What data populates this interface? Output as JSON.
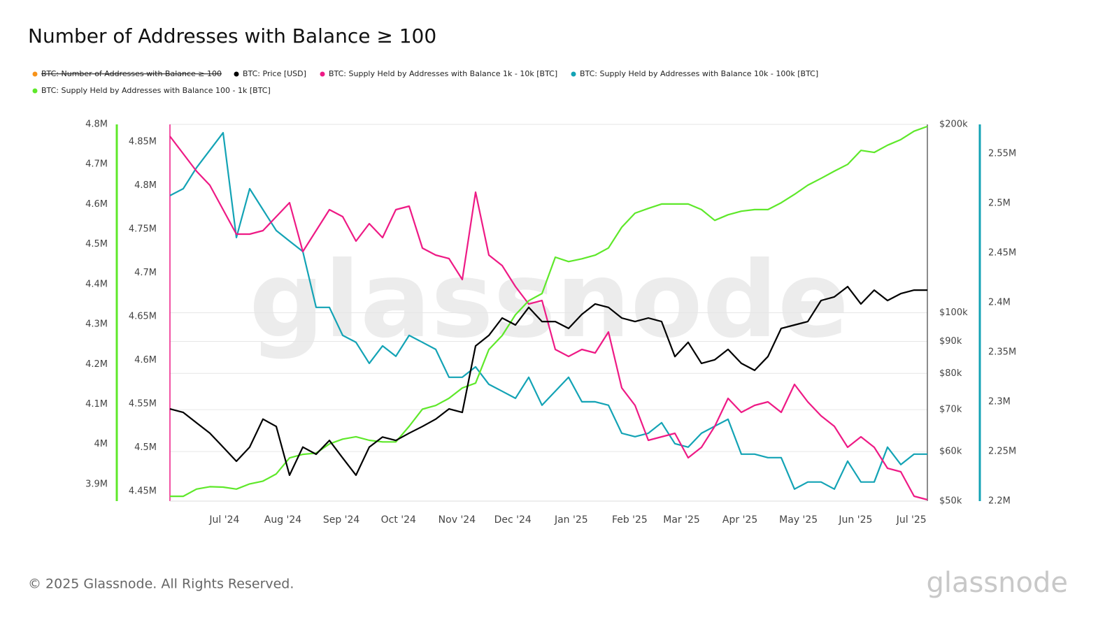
{
  "chart_data": {
    "type": "line",
    "title": "Number of Addresses with Balance ≥ 100",
    "watermark": "glassnode",
    "xlim": [
      0,
      57
    ],
    "xticks": [
      {
        "value": 4.1,
        "label": "Jul '24"
      },
      {
        "value": 8.5,
        "label": "Aug '24"
      },
      {
        "value": 12.9,
        "label": "Sep '24"
      },
      {
        "value": 17.2,
        "label": "Oct '24"
      },
      {
        "value": 21.6,
        "label": "Nov '24"
      },
      {
        "value": 25.8,
        "label": "Dec '24"
      },
      {
        "value": 30.2,
        "label": "Jan '25"
      },
      {
        "value": 34.6,
        "label": "Feb '25"
      },
      {
        "value": 38.5,
        "label": "Mar '25"
      },
      {
        "value": 42.9,
        "label": "Apr '25"
      },
      {
        "value": 47.3,
        "label": "May '25"
      },
      {
        "value": 51.6,
        "label": "Jun '25"
      },
      {
        "value": 55.8,
        "label": "Jul '25"
      }
    ],
    "grid": true,
    "series": [
      {
        "name": "BTC: Number of Addresses with Balance ≥ 100",
        "color": "#f7931a",
        "hidden": true
      },
      {
        "name": "BTC: Price [USD]",
        "color": "#000000",
        "axis": "price",
        "log": true,
        "ylim": [
          50000,
          200000
        ],
        "yticks": [
          {
            "value": 50000,
            "label": "$50k"
          },
          {
            "value": 60000,
            "label": "$60k"
          },
          {
            "value": 70000,
            "label": "$70k"
          },
          {
            "value": 80000,
            "label": "$80k"
          },
          {
            "value": 90000,
            "label": "$90k"
          },
          {
            "value": 100000,
            "label": "$100k"
          },
          {
            "value": 200000,
            "label": "$200k"
          }
        ],
        "values": [
          70200,
          69300,
          66700,
          64200,
          61000,
          57900,
          61000,
          67600,
          65800,
          55000,
          61000,
          59400,
          62500,
          58600,
          55000,
          61000,
          63300,
          62500,
          64200,
          65800,
          67600,
          70200,
          69300,
          88500,
          92000,
          98100,
          95600,
          102000,
          96800,
          96800,
          94400,
          99400,
          103300,
          102000,
          98100,
          96800,
          98100,
          96800,
          85100,
          89700,
          83000,
          84100,
          87400,
          83000,
          80900,
          85100,
          94400,
          95600,
          96800,
          104600,
          106000,
          110100,
          103300,
          108700,
          104600,
          107300,
          108700,
          108700
        ]
      },
      {
        "name": "BTC: Supply Held by Addresses with Balance 1k - 10k [BTC]",
        "color": "#ee1a85",
        "axis": "pink",
        "ylim": [
          4438800,
          4870000
        ],
        "yticks": [
          {
            "value": 4450000,
            "label": "4.45M"
          },
          {
            "value": 4500000,
            "label": "4.5M"
          },
          {
            "value": 4550000,
            "label": "4.55M"
          },
          {
            "value": 4600000,
            "label": "4.6M"
          },
          {
            "value": 4650000,
            "label": "4.65M"
          },
          {
            "value": 4700000,
            "label": "4.7M"
          },
          {
            "value": 4750000,
            "label": "4.75M"
          },
          {
            "value": 4800000,
            "label": "4.8M"
          },
          {
            "value": 4850000,
            "label": "4.85M"
          }
        ],
        "values": [
          4856400,
          4836400,
          4816400,
          4800400,
          4772400,
          4744400,
          4744400,
          4748400,
          4764400,
          4780400,
          4724400,
          4748400,
          4772400,
          4764400,
          4736400,
          4756400,
          4740400,
          4772400,
          4776400,
          4728400,
          4720400,
          4716400,
          4692400,
          4792400,
          4720400,
          4708400,
          4684400,
          4664400,
          4668400,
          4612400,
          4604400,
          4612400,
          4608400,
          4632400,
          4568400,
          4548400,
          4508400,
          4512400,
          4516400,
          4488400,
          4500400,
          4524400,
          4556400,
          4540400,
          4548400,
          4552400,
          4540400,
          4572400,
          4552400,
          4536400,
          4524400,
          4500400,
          4512400,
          4500400,
          4476400,
          4472400,
          4444400,
          4440400
        ]
      },
      {
        "name": "BTC: Supply Held by Addresses with Balance 10k - 100k [BTC]",
        "color": "#13a3b5",
        "axis": "teal",
        "ylim": [
          2200000,
          2579600
        ],
        "yticks": [
          {
            "value": 2200000,
            "label": "2.2M"
          },
          {
            "value": 2250000,
            "label": "2.25M"
          },
          {
            "value": 2300000,
            "label": "2.3M"
          },
          {
            "value": 2350000,
            "label": "2.35M"
          },
          {
            "value": 2400000,
            "label": "2.4M"
          },
          {
            "value": 2450000,
            "label": "2.45M"
          },
          {
            "value": 2500000,
            "label": "2.5M"
          },
          {
            "value": 2550000,
            "label": "2.55M"
          }
        ],
        "values": [
          2507800,
          2514800,
          2536000,
          2553600,
          2571200,
          2465600,
          2514800,
          2493700,
          2472600,
          2462000,
          2451500,
          2395200,
          2395200,
          2367000,
          2360000,
          2338800,
          2356400,
          2345900,
          2367000,
          2360000,
          2352900,
          2324800,
          2324800,
          2335300,
          2317700,
          2310700,
          2303600,
          2324800,
          2296600,
          2310700,
          2324800,
          2300100,
          2300100,
          2296600,
          2268400,
          2264900,
          2268400,
          2279000,
          2257900,
          2254400,
          2268400,
          2275500,
          2282500,
          2247300,
          2247300,
          2243800,
          2243800,
          2212100,
          2219200,
          2219200,
          2212100,
          2240300,
          2219200,
          2219200,
          2254400,
          2236800,
          2247300,
          2247300
        ]
      },
      {
        "name": "BTC: Supply Held by Addresses with Balance 100 - 1k [BTC]",
        "color": "#5ee82a",
        "axis": "green",
        "ylim": [
          3858000,
          4800000
        ],
        "yticks": [
          {
            "value": 3900000,
            "label": "3.9M"
          },
          {
            "value": 4000000,
            "label": "4M"
          },
          {
            "value": 4100000,
            "label": "4.1M"
          },
          {
            "value": 4200000,
            "label": "4.2M"
          },
          {
            "value": 4300000,
            "label": "4.3M"
          },
          {
            "value": 4400000,
            "label": "4.4M"
          },
          {
            "value": 4500000,
            "label": "4.5M"
          },
          {
            "value": 4600000,
            "label": "4.6M"
          },
          {
            "value": 4700000,
            "label": "4.7M"
          },
          {
            "value": 4800000,
            "label": "4.8M"
          }
        ],
        "values": [
          3870000,
          3870000,
          3888000,
          3894000,
          3893000,
          3888000,
          3901000,
          3908000,
          3926000,
          3966000,
          3975000,
          3978000,
          4001000,
          4013000,
          4019000,
          4010000,
          4006000,
          4006000,
          4045000,
          4088000,
          4097000,
          4115000,
          4141000,
          4153000,
          4237000,
          4272000,
          4324000,
          4359000,
          4377000,
          4468000,
          4457000,
          4464000,
          4473000,
          4491000,
          4543000,
          4578000,
          4590000,
          4601000,
          4601000,
          4601000,
          4587000,
          4560000,
          4574000,
          4583000,
          4587000,
          4587000,
          4604000,
          4625000,
          4648000,
          4665000,
          4683000,
          4700000,
          4735000,
          4730000,
          4748000,
          4762000,
          4783000,
          4795000
        ]
      }
    ]
  },
  "footer": "© 2025 Glassnode. All Rights Reserved.",
  "logo": "glassnode"
}
